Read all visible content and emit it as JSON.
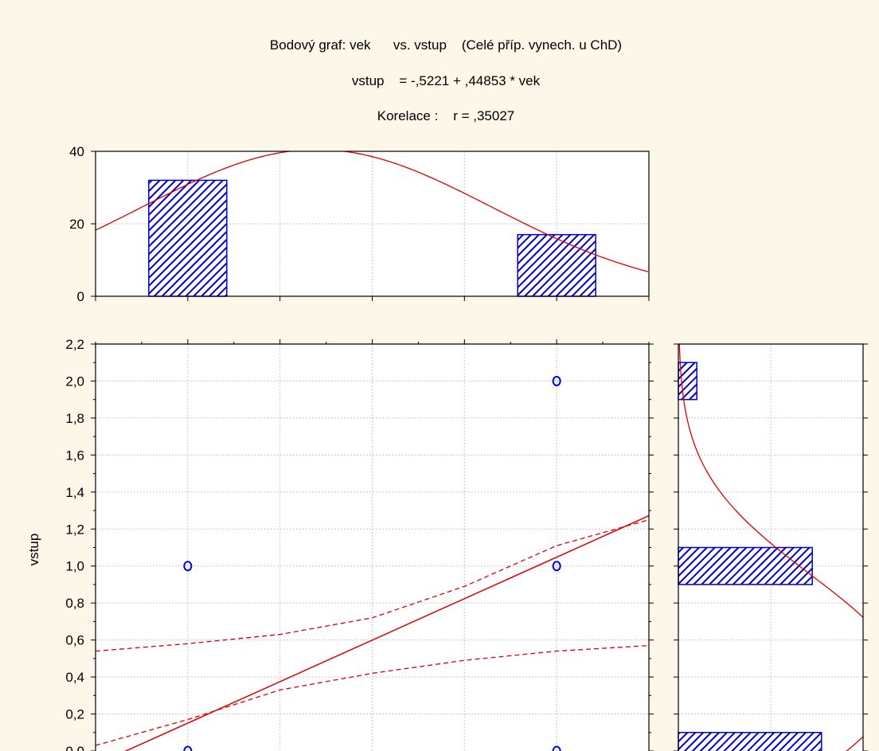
{
  "chart_data": {
    "type": "scatter",
    "title_lines": [
      "Bodový graf: vek      vs. vstup    (Celé příp. vynech. u ChD)",
      "vstup    = -,5221 + ,44853 * vek",
      "Korelace :    r = ,35027"
    ],
    "ylabel": "vstup",
    "xlabel": "",
    "xlim": [
      1.0,
      4.0
    ],
    "ylim": [
      0.0,
      2.2
    ],
    "yticks": [
      "0,0",
      "0,2",
      "0,4",
      "0,6",
      "0,8",
      "1,0",
      "1,2",
      "1,4",
      "1,6",
      "1,8",
      "2,0",
      "2,2"
    ],
    "yticks_values": [
      0.0,
      0.2,
      0.4,
      0.6,
      0.8,
      1.0,
      1.2,
      1.4,
      1.6,
      1.8,
      2.0,
      2.2
    ],
    "points": [
      {
        "x": 1.5,
        "y": 1.0
      },
      {
        "x": 1.5,
        "y": 0.0
      },
      {
        "x": 3.5,
        "y": 2.0
      },
      {
        "x": 3.5,
        "y": 1.0
      },
      {
        "x": 3.5,
        "y": 0.0
      }
    ],
    "regression": {
      "intercept": -0.5221,
      "slope": 0.44853
    },
    "confidence_band": {
      "x": [
        1.0,
        1.5,
        2.0,
        2.5,
        3.0,
        3.5,
        4.0
      ],
      "upper": [
        0.54,
        0.58,
        0.63,
        0.72,
        0.89,
        1.11,
        1.25
      ],
      "lower": [
        0.03,
        0.17,
        0.33,
        0.42,
        0.49,
        0.54,
        0.57
      ]
    },
    "top_histogram": {
      "ylim": [
        0,
        40
      ],
      "yticks": [
        "0",
        "20",
        "40"
      ],
      "yticks_values": [
        0,
        20,
        40
      ],
      "bars": [
        {
          "x": 1.5,
          "count": 32
        },
        {
          "x": 3.5,
          "count": 17
        }
      ],
      "normal_fit": {
        "mean": 2.2,
        "sd": 0.95,
        "peak": 40.5
      }
    },
    "right_histogram": {
      "xlim": [
        0,
        40
      ],
      "bars": [
        {
          "y": 2.0,
          "count": 4
        },
        {
          "y": 1.0,
          "count": 29
        },
        {
          "y": 0.0,
          "count": 31
        }
      ],
      "normal_fit": {
        "mean": 0.4,
        "sd": 0.55,
        "peak": 47.5
      }
    },
    "colors": {
      "background": "#fdf7ea",
      "marker": "#0000ee",
      "bar_fill": "#8a8ae6",
      "bar_edge": "#0000cc",
      "fit_line": "#dd0000",
      "grid": "#c8c8c8"
    }
  }
}
